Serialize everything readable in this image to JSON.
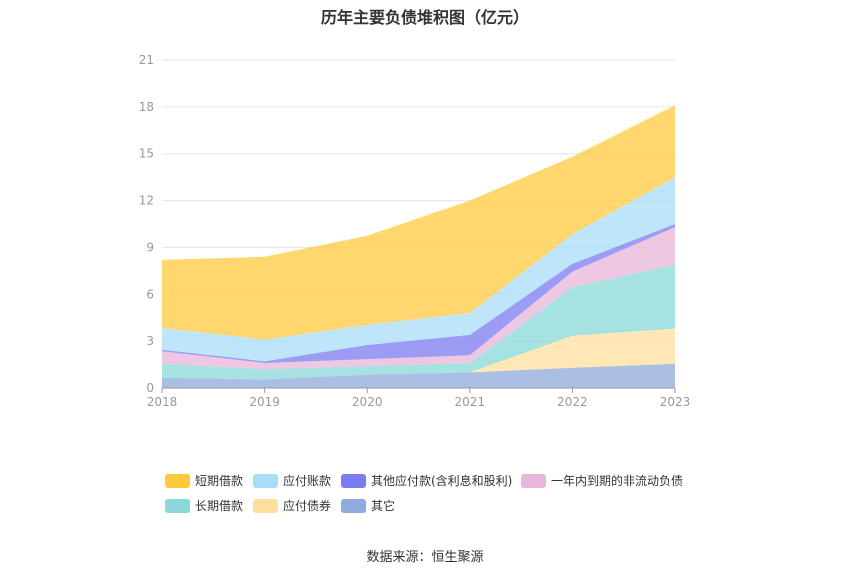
{
  "chart_data": {
    "type": "area",
    "stacked": true,
    "title": "历年主要负债堆积图（亿元）",
    "xlabel": "",
    "ylabel": "",
    "categories": [
      "2018",
      "2019",
      "2020",
      "2021",
      "2022",
      "2023"
    ],
    "ylim": [
      0,
      21
    ],
    "yticks": [
      0,
      3,
      6,
      9,
      12,
      15,
      18,
      21
    ],
    "grid": true,
    "legend_position": "bottom",
    "series": [
      {
        "name": "其它",
        "color": "#8faadc",
        "values": [
          0.65,
          0.55,
          0.85,
          1.0,
          1.3,
          1.55
        ]
      },
      {
        "name": "应付债券",
        "color": "#ffdf9e",
        "values": [
          0,
          0,
          0,
          0,
          2.05,
          2.25
        ]
      },
      {
        "name": "长期借款",
        "color": "#8ad8d8",
        "values": [
          0.9,
          0.65,
          0.55,
          0.6,
          3.1,
          4.1
        ]
      },
      {
        "name": "一年内到期的非流动负债",
        "color": "#e8b6d8",
        "values": [
          0.8,
          0.4,
          0.45,
          0.5,
          1.0,
          2.4
        ]
      },
      {
        "name": "其他应付款(含利息和股利)",
        "color": "#7b7bf0",
        "values": [
          0.1,
          0.1,
          0.9,
          1.3,
          0.5,
          0.2
        ]
      },
      {
        "name": "应付账款",
        "color": "#a8dcf8",
        "values": [
          1.4,
          1.4,
          1.3,
          1.4,
          1.9,
          3.0
        ]
      },
      {
        "name": "短期借款",
        "color": "#ffc93d",
        "values": [
          4.35,
          5.3,
          5.7,
          7.2,
          4.95,
          4.6
        ]
      }
    ]
  },
  "legend": {
    "items": [
      {
        "label": "短期借款",
        "color": "#ffc93d"
      },
      {
        "label": "应付账款",
        "color": "#a8dcf8"
      },
      {
        "label": "其他应付款(含利息和股利)",
        "color": "#7b7bf0"
      },
      {
        "label": "一年内到期的非流动负债",
        "color": "#e8b6d8"
      },
      {
        "label": "长期借款",
        "color": "#8ad8d8"
      },
      {
        "label": "应付债券",
        "color": "#ffdf9e"
      },
      {
        "label": "其它",
        "color": "#8faadc"
      }
    ]
  },
  "source": "数据来源：恒生聚源"
}
